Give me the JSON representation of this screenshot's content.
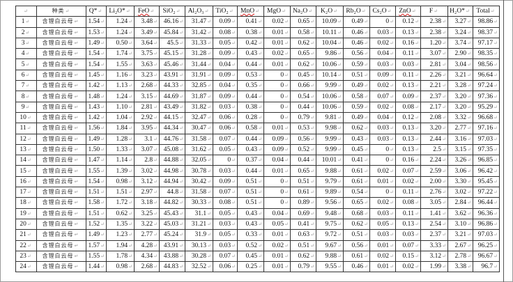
{
  "table": {
    "headers": [
      "",
      "种类",
      "Q*",
      "Li₂O*",
      "FeO",
      "SiO₂",
      "Al₂O₃",
      "TiO₂",
      "MnO",
      "MgO",
      "Na₂O",
      "K₂O",
      "Rb₂O",
      "Cs₂O",
      "ZnO",
      "F",
      "H₂O*",
      "Total"
    ],
    "rows": [
      [
        "1",
        "含锂白云母",
        "1.54",
        "1.24",
        "3.48",
        "46.16",
        "31.47",
        "0.09",
        "0.41",
        "0.02",
        "0.65",
        "10.09",
        "0.49",
        "0",
        "0.12",
        "2.38",
        "3.27",
        "98.86"
      ],
      [
        "2",
        "含锂白云母",
        "1.53",
        "1.24",
        "3.49",
        "45.84",
        "31.42",
        "0.08",
        "0.38",
        "0.01",
        "0.58",
        "10.11",
        "0.46",
        "0.03",
        "0.13",
        "2.38",
        "3.24",
        "98.37"
      ],
      [
        "3",
        "含锂白云母",
        "1.49",
        "0.50",
        "3.64",
        "45.5",
        "31.33",
        "0.05",
        "0.42",
        "0.01",
        "0.62",
        "10.04",
        "0.46",
        "0.02",
        "0.16",
        "1.20",
        "3.74",
        "97.17"
      ],
      [
        "4",
        "含锂白云母",
        "1.54",
        "1.74",
        "3.75",
        "45.15",
        "31.28",
        "0.09",
        "0.43",
        "0.02",
        "0.65",
        "9.86",
        "0.56",
        "0.04",
        "0.11",
        "3.07",
        "2.90",
        "98.35"
      ],
      [
        "5",
        "含锂白云母",
        "1.54",
        "1.55",
        "3.63",
        "45.46",
        "31.44",
        "0.04",
        "0.44",
        "0.01",
        "0.62",
        "10.06",
        "0.59",
        "0.03",
        "0.03",
        "2.81",
        "3.04",
        "98.56"
      ],
      [
        "6",
        "含锂白云母",
        "1.45",
        "1.16",
        "3.23",
        "43.91",
        "31.91",
        "0.09",
        "0.53",
        "0",
        "0.45",
        "10.14",
        "0.51",
        "0.09",
        "0.11",
        "2.26",
        "3.21",
        "96.64"
      ],
      [
        "7",
        "含锂白云母",
        "1.42",
        "1.13",
        "2.68",
        "44.33",
        "32.85",
        "0.04",
        "0.35",
        "0",
        "0.66",
        "9.99",
        "0.49",
        "0.02",
        "0.13",
        "2.21",
        "3.28",
        "97.24"
      ],
      [
        "8",
        "含锂白云母",
        "1.48",
        "1.24",
        "3.15",
        "44.69",
        "31.87",
        "0.09",
        "0.44",
        "0",
        "0.54",
        "10.06",
        "0.58",
        "0.07",
        "0.09",
        "2.37",
        "3.20",
        "97.36"
      ],
      [
        "9",
        "含锂白云母",
        "1.43",
        "1.10",
        "2.81",
        "43.49",
        "31.82",
        "0.03",
        "0.38",
        "0",
        "0.44",
        "10.06",
        "0.59",
        "0.02",
        "0.08",
        "2.17",
        "3.20",
        "95.29"
      ],
      [
        "10",
        "含锂白云母",
        "1.42",
        "1.04",
        "2.92",
        "44.15",
        "32.47",
        "0.06",
        "0.28",
        "0",
        "0.79",
        "9.81",
        "0.49",
        "0.04",
        "0.12",
        "2.08",
        "3.32",
        "96.68"
      ],
      [
        "11",
        "含锂白云母",
        "1.56",
        "1.84",
        "3.95",
        "44.34",
        "30.47",
        "0.06",
        "0.58",
        "0.01",
        "0.53",
        "9.98",
        "0.62",
        "0.03",
        "0.13",
        "3.20",
        "2.77",
        "97.16"
      ],
      [
        "12",
        "含锂白云母",
        "1.49",
        "1.28",
        "3.1",
        "44.76",
        "31.58",
        "0.07",
        "0.44",
        "0.09",
        "0.56",
        "9.99",
        "0.43",
        "0.03",
        "0.13",
        "2.44",
        "3.16",
        "97.03"
      ],
      [
        "13",
        "含锂白云母",
        "1.50",
        "1.33",
        "3.07",
        "45.08",
        "31.62",
        "0.05",
        "0.43",
        "0.09",
        "0.52",
        "9.99",
        "0.45",
        "0",
        "0.13",
        "2.5",
        "3.15",
        "97.35"
      ],
      [
        "14",
        "含锂白云母",
        "1.47",
        "1.14",
        "2.8",
        "44.88",
        "32.05",
        "0",
        "0.37",
        "0.04",
        "0.44",
        "10.01",
        "0.41",
        "0",
        "0.16",
        "2.24",
        "3.26",
        "96.85"
      ],
      [
        "15",
        "含锂白云母",
        "1.55",
        "1.39",
        "3.02",
        "44.98",
        "30.78",
        "0.03",
        "0.44",
        "0.01",
        "0.65",
        "9.88",
        "0.61",
        "0.02",
        "0.07",
        "2.59",
        "3.06",
        "96.42"
      ],
      [
        "16",
        "含锂白云母",
        "1.54",
        "0.98",
        "3.12",
        "44.94",
        "30.42",
        "0.09",
        "0.51",
        "0",
        "0.51",
        "9.79",
        "0.61",
        "0.01",
        "0.02",
        "2.00",
        "3.30",
        "95.45"
      ],
      [
        "17",
        "含锂白云母",
        "1.51",
        "1.51",
        "2.97",
        "44.8",
        "31.58",
        "0.07",
        "0.51",
        "0",
        "0.61",
        "9.89",
        "0.54",
        "0",
        "0.11",
        "2.76",
        "3.02",
        "97.22"
      ],
      [
        "18",
        "含锂白云母",
        "1.58",
        "1.72",
        "3.18",
        "44.82",
        "30.33",
        "0.08",
        "0.51",
        "0",
        "0.89",
        "9.56",
        "0.65",
        "0.02",
        "0.08",
        "3.05",
        "2.84",
        "96.44"
      ],
      [
        "19",
        "含锂白云母",
        "1.51",
        "0.62",
        "3.25",
        "45.43",
        "31.1",
        "0.05",
        "0.43",
        "0.04",
        "0.69",
        "9.48",
        "0.68",
        "0.03",
        "0.11",
        "1.41",
        "3.62",
        "96.36"
      ],
      [
        "20",
        "含锂白云母",
        "1.52",
        "1.35",
        "3.22",
        "45.03",
        "31.21",
        "0.03",
        "0.43",
        "0.05",
        "0.41",
        "9.75",
        "0.62",
        "0.05",
        "0.13",
        "2.54",
        "3.10",
        "96.86"
      ],
      [
        "21",
        "含锂白云母",
        "1.49",
        "1.23",
        "2.77",
        "45.24",
        "31.9",
        "0.05",
        "0.33",
        "0.01",
        "0.63",
        "9.72",
        "0.51",
        "0.03",
        "0.03",
        "2.37",
        "3.21",
        "97.03"
      ],
      [
        "22",
        "含锂白云母",
        "1.57",
        "1.94",
        "4.28",
        "43.91",
        "30.13",
        "0.03",
        "0.52",
        "0.02",
        "0.51",
        "9.67",
        "0.56",
        "0.01",
        "0.07",
        "3.33",
        "2.67",
        "96.25"
      ],
      [
        "23",
        "含锂白云母",
        "1.55",
        "1.78",
        "4.34",
        "43.88",
        "30.28",
        "0.07",
        "0.45",
        "0.01",
        "0.62",
        "9.88",
        "0.61",
        "0.02",
        "0.15",
        "3.12",
        "2.78",
        "96.67"
      ],
      [
        "24",
        "含锂白云母",
        "1.44",
        "0.98",
        "2.68",
        "44.83",
        "32.52",
        "0.06",
        "0.25",
        "0.01",
        "0.79",
        "9.55",
        "0.46",
        "0.01",
        "0.02",
        "1.99",
        "3.38",
        "96.7"
      ]
    ]
  }
}
